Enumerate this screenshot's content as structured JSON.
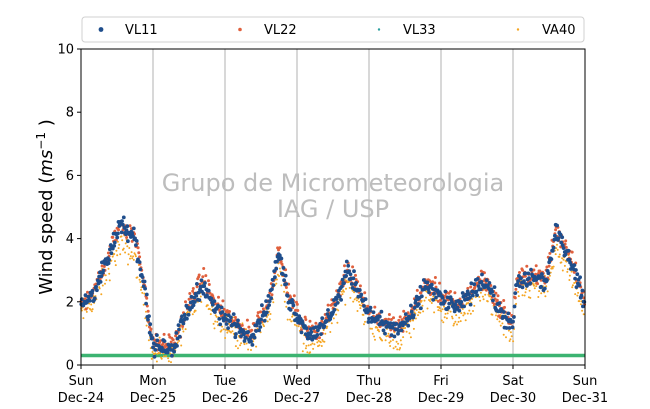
{
  "chart_data": {
    "type": "scatter",
    "title": "",
    "ylabel_main": "Wind speed (",
    "ylabel_unit": "ms",
    "ylabel_exp": "−1",
    "ylabel_close": " )",
    "ylim": [
      0,
      10
    ],
    "yticks": [
      0,
      2,
      4,
      6,
      8,
      10
    ],
    "xlim_days": [
      24,
      31
    ],
    "xtick_days": [
      24,
      25,
      26,
      27,
      28,
      29,
      30,
      31
    ],
    "xtick_labels": [
      {
        "day": "Sun",
        "date": "Dec-24"
      },
      {
        "day": "Mon",
        "date": "Dec-25"
      },
      {
        "day": "Tue",
        "date": "Dec-26"
      },
      {
        "day": "Wed",
        "date": "Dec-27"
      },
      {
        "day": "Thu",
        "date": "Dec-28"
      },
      {
        "day": "Fri",
        "date": "Dec-29"
      },
      {
        "day": "Sat",
        "date": "Dec-30"
      },
      {
        "day": "Sun",
        "date": "Dec-31"
      }
    ],
    "grid": "vertical",
    "legend_position": "top",
    "watermark": [
      "Grupo de Micrometeorologia",
      "IAG / USP"
    ],
    "reference_line": {
      "y": 0.3,
      "color": "#3cb371"
    },
    "series": [
      {
        "name": "VL11",
        "color": "#1f4e8c",
        "profile": [
          [
            24.0,
            1.8
          ],
          [
            24.2,
            2.4
          ],
          [
            24.35,
            3.2
          ],
          [
            24.55,
            4.4
          ],
          [
            24.75,
            4.0
          ],
          [
            24.9,
            2.2
          ],
          [
            25.0,
            0.6
          ],
          [
            25.3,
            0.6
          ],
          [
            25.45,
            1.6
          ],
          [
            25.7,
            2.6
          ],
          [
            25.85,
            1.8
          ],
          [
            26.15,
            1.2
          ],
          [
            26.35,
            0.9
          ],
          [
            26.6,
            1.9
          ],
          [
            26.75,
            3.5
          ],
          [
            26.9,
            2.0
          ],
          [
            27.15,
            1.0
          ],
          [
            27.35,
            1.1
          ],
          [
            27.55,
            2.0
          ],
          [
            27.7,
            3.0
          ],
          [
            27.85,
            2.4
          ],
          [
            28.0,
            1.6
          ],
          [
            28.25,
            1.2
          ],
          [
            28.4,
            1.1
          ],
          [
            28.6,
            1.6
          ],
          [
            28.8,
            2.6
          ],
          [
            29.0,
            2.1
          ],
          [
            29.25,
            1.8
          ],
          [
            29.4,
            2.2
          ],
          [
            29.6,
            2.7
          ],
          [
            29.8,
            1.8
          ],
          [
            30.0,
            1.2
          ],
          [
            30.05,
            2.6
          ],
          [
            30.3,
            2.8
          ],
          [
            30.45,
            2.6
          ],
          [
            30.6,
            4.2
          ],
          [
            30.8,
            3.4
          ],
          [
            31.0,
            1.9
          ]
        ]
      },
      {
        "name": "VL22",
        "color": "#e0603d",
        "profile": [
          [
            24.0,
            1.9
          ],
          [
            24.2,
            2.5
          ],
          [
            24.35,
            3.3
          ],
          [
            24.55,
            4.5
          ],
          [
            24.75,
            4.1
          ],
          [
            24.9,
            2.3
          ],
          [
            25.0,
            0.7
          ],
          [
            25.3,
            0.7
          ],
          [
            25.45,
            1.7
          ],
          [
            25.7,
            2.8
          ],
          [
            25.85,
            1.9
          ],
          [
            26.15,
            1.3
          ],
          [
            26.35,
            1.0
          ],
          [
            26.6,
            2.0
          ],
          [
            26.75,
            3.6
          ],
          [
            26.9,
            2.1
          ],
          [
            27.15,
            1.1
          ],
          [
            27.35,
            1.2
          ],
          [
            27.55,
            2.1
          ],
          [
            27.7,
            3.1
          ],
          [
            27.85,
            2.5
          ],
          [
            28.0,
            1.7
          ],
          [
            28.25,
            1.3
          ],
          [
            28.4,
            1.2
          ],
          [
            28.6,
            1.7
          ],
          [
            28.8,
            2.7
          ],
          [
            29.0,
            2.2
          ],
          [
            29.25,
            1.9
          ],
          [
            29.4,
            2.3
          ],
          [
            29.6,
            2.8
          ],
          [
            29.8,
            1.9
          ],
          [
            30.0,
            1.3
          ],
          [
            30.05,
            2.7
          ],
          [
            30.3,
            2.9
          ],
          [
            30.45,
            2.7
          ],
          [
            30.6,
            4.3
          ],
          [
            30.8,
            3.5
          ],
          [
            31.0,
            2.0
          ]
        ]
      },
      {
        "name": "VL33",
        "color": "#2ca0a0",
        "profile": [
          [
            24.0,
            0.05
          ],
          [
            31.0,
            0.05
          ]
        ]
      },
      {
        "name": "VA40",
        "color": "#f5a623",
        "profile": [
          [
            24.0,
            1.6
          ],
          [
            24.2,
            2.1
          ],
          [
            24.35,
            2.9
          ],
          [
            24.55,
            3.8
          ],
          [
            24.75,
            3.4
          ],
          [
            24.9,
            1.8
          ],
          [
            25.0,
            0.3
          ],
          [
            25.3,
            0.4
          ],
          [
            25.45,
            1.4
          ],
          [
            25.7,
            2.3
          ],
          [
            25.85,
            1.6
          ],
          [
            26.15,
            1.0
          ],
          [
            26.35,
            0.6
          ],
          [
            26.6,
            1.6
          ],
          [
            26.75,
            3.0
          ],
          [
            26.9,
            1.7
          ],
          [
            27.15,
            0.7
          ],
          [
            27.35,
            0.8
          ],
          [
            27.55,
            1.7
          ],
          [
            27.7,
            2.6
          ],
          [
            27.85,
            2.1
          ],
          [
            28.0,
            1.3
          ],
          [
            28.25,
            0.9
          ],
          [
            28.4,
            0.8
          ],
          [
            28.6,
            1.3
          ],
          [
            28.8,
            2.3
          ],
          [
            29.0,
            1.8
          ],
          [
            29.25,
            1.5
          ],
          [
            29.4,
            1.9
          ],
          [
            29.6,
            2.4
          ],
          [
            29.8,
            1.5
          ],
          [
            30.0,
            0.9
          ],
          [
            30.05,
            2.3
          ],
          [
            30.3,
            2.5
          ],
          [
            30.45,
            2.3
          ],
          [
            30.6,
            3.6
          ],
          [
            30.8,
            2.9
          ],
          [
            31.0,
            1.5
          ]
        ]
      }
    ]
  }
}
